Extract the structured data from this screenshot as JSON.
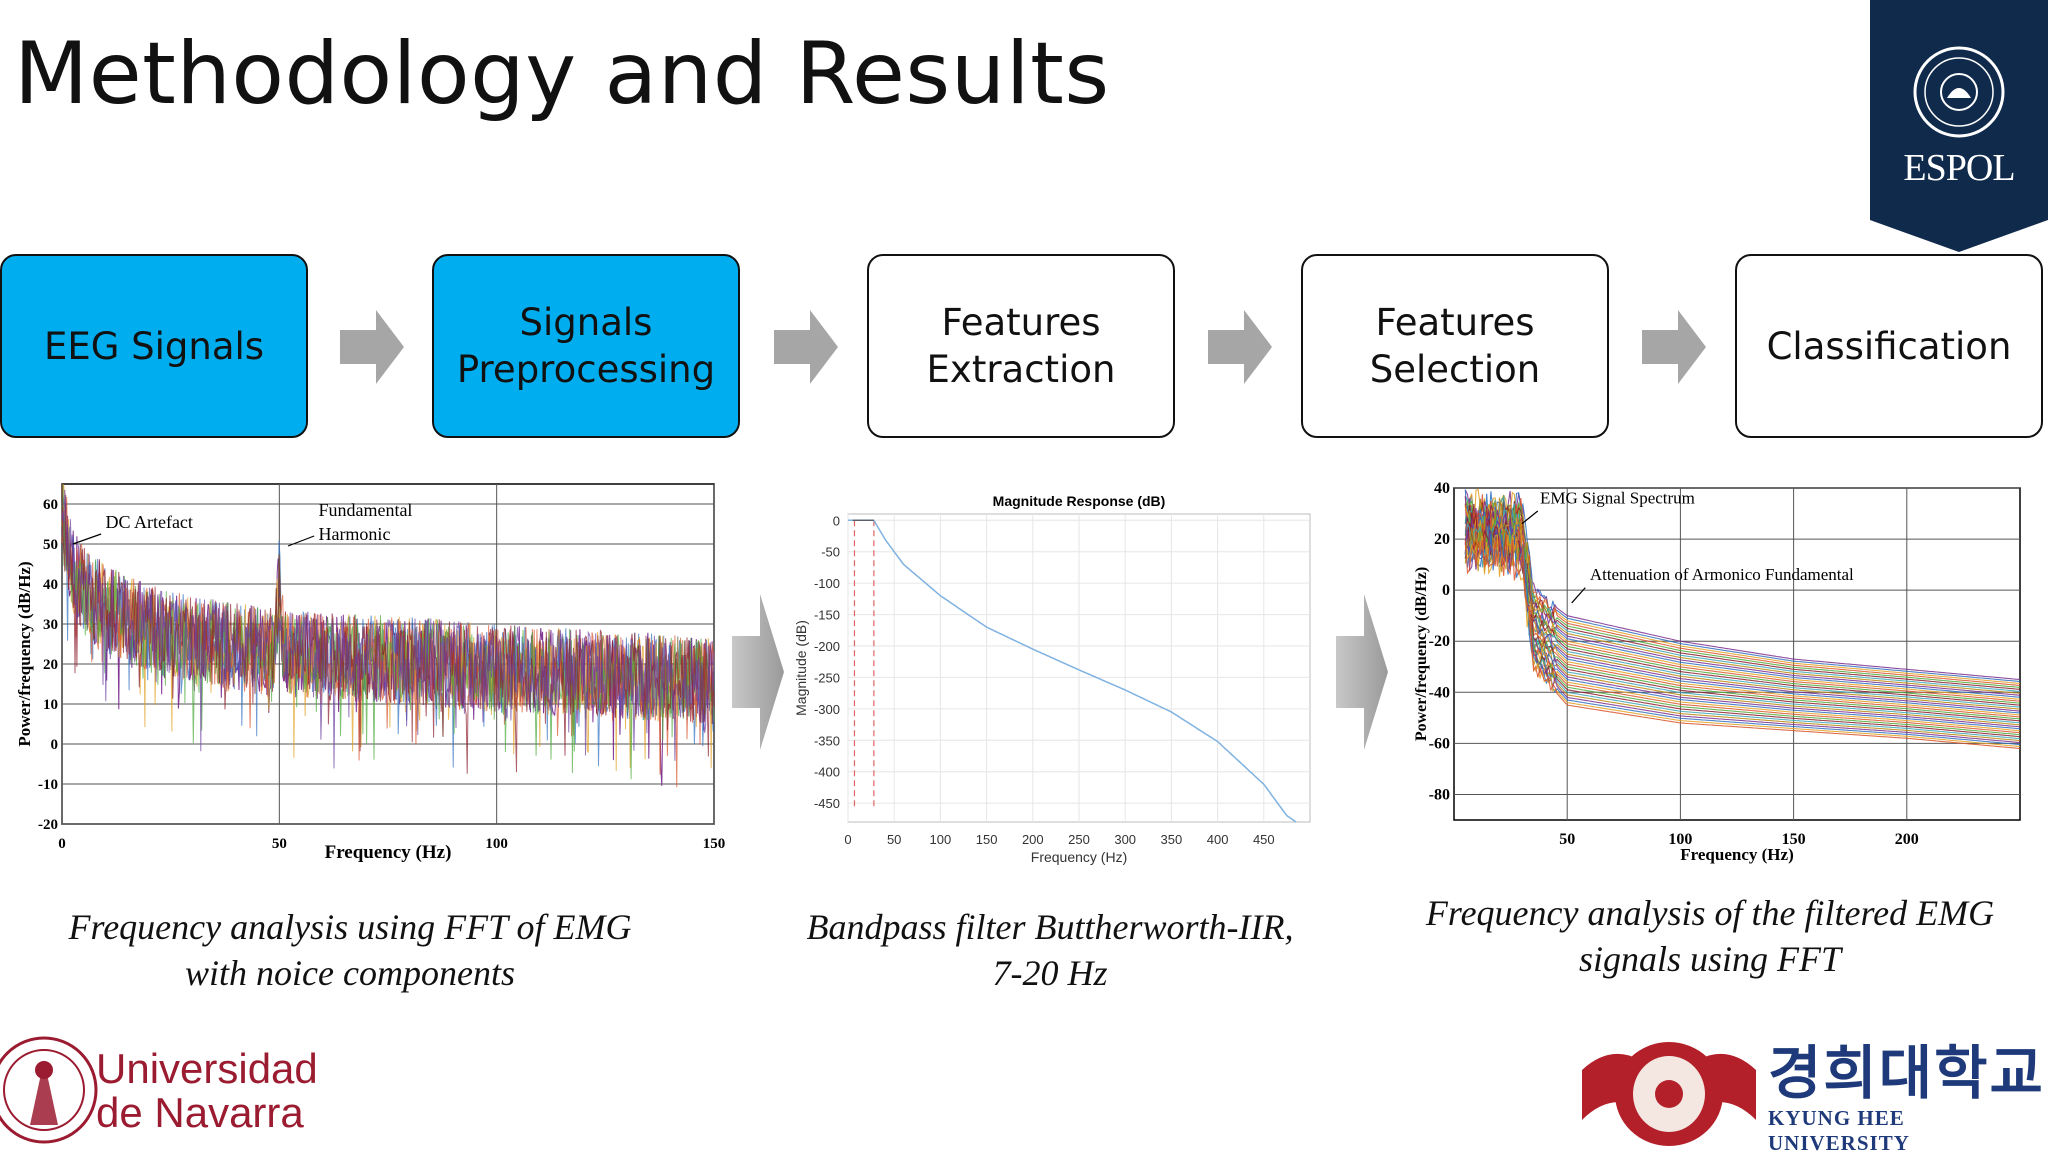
{
  "slide": {
    "title": "Methodology and Results"
  },
  "pipeline": [
    {
      "lines": [
        "EEG Signals"
      ],
      "active": true
    },
    {
      "lines": [
        "Signals",
        "Preprocessing"
      ],
      "active": true
    },
    {
      "lines": [
        "Features",
        "Extraction"
      ],
      "active": false
    },
    {
      "lines": [
        "Features",
        "Selection"
      ],
      "active": false
    },
    {
      "lines": [
        "Classification"
      ],
      "active": false
    }
  ],
  "colors": {
    "active_step": "#00aeef",
    "arrow": "#a6a6a6",
    "espol_navy": "#102a4c",
    "navarra_red": "#9b1b30",
    "kyunghee_blue": "#1f3a7a"
  },
  "captions": {
    "fft_noise": [
      "Frequency analysis using FFT of EMG",
      "with noice components"
    ],
    "filter": [
      "Bandpass filter Buttherworth-IIR,",
      "7-20 Hz"
    ],
    "fft_filtered": [
      "Frequency analysis of the filtered EMG",
      "signals using FFT"
    ]
  },
  "logos": {
    "espol": "ESPOL",
    "navarra": [
      "Universidad",
      "de Navarra"
    ],
    "kyunghee_korean": "경희대학교",
    "kyunghee_english": "KYUNG HEE UNIVERSITY"
  },
  "chart_data": [
    {
      "type": "line",
      "title": "",
      "xlabel": "Frequency (Hz)",
      "ylabel": "Power/frequency (dB/Hz)",
      "xlim": [
        0,
        150
      ],
      "ylim": [
        -20,
        65
      ],
      "xticks": [
        0,
        50,
        100,
        150
      ],
      "yticks": [
        -20,
        -10,
        0,
        10,
        20,
        30,
        40,
        50,
        60
      ],
      "grid": true,
      "annotations": [
        {
          "text": "DC Artefact",
          "x": 1,
          "y": 50
        },
        {
          "text": "Fundamental Harmonic",
          "x": 50,
          "y": 47
        }
      ],
      "profile": {
        "x": [
          0,
          2,
          5,
          10,
          20,
          30,
          49,
          50,
          51,
          60,
          80,
          100,
          150
        ],
        "y": [
          62,
          46,
          40,
          35,
          30,
          27,
          24,
          43,
          24,
          23,
          22,
          20,
          17
        ]
      }
    },
    {
      "type": "line",
      "title": "Magnitude Response (dB)",
      "xlabel": "Frequency (Hz)",
      "ylabel": "Magnitude (dB)",
      "xlim": [
        0,
        500
      ],
      "ylim": [
        -480,
        10
      ],
      "xticks": [
        0,
        50,
        100,
        150,
        200,
        250,
        300,
        350,
        400,
        450
      ],
      "yticks": [
        0,
        -50,
        -100,
        -150,
        -200,
        -250,
        -300,
        -350,
        -400,
        -450
      ],
      "grid": true,
      "passband": [
        7,
        20
      ],
      "response": {
        "x": [
          0,
          7,
          28,
          30,
          40,
          60,
          100,
          150,
          200,
          250,
          300,
          350,
          400,
          450,
          475,
          485
        ],
        "y": [
          0,
          0,
          0,
          -5,
          -30,
          -70,
          -120,
          -170,
          -205,
          -238,
          -270,
          -305,
          -352,
          -420,
          -470,
          -480
        ]
      }
    },
    {
      "type": "line",
      "title": "",
      "xlabel": "Frequency (Hz)",
      "ylabel": "Power/frequency (dB/Hz)",
      "xlim": [
        0,
        250
      ],
      "ylim": [
        -90,
        40
      ],
      "xticks": [
        50,
        100,
        150,
        200
      ],
      "yticks": [
        40,
        20,
        0,
        -20,
        -40,
        -60,
        -80
      ],
      "grid": true,
      "annotations": [
        {
          "text": "EMG Signal Spectrum",
          "x": 30,
          "y": 25
        },
        {
          "text": "Attenuation of Armonico Fundamental",
          "x": 52,
          "y": 0
        }
      ],
      "envelope": {
        "x": [
          5,
          30,
          35,
          50,
          100,
          150,
          200,
          250
        ],
        "y_top": [
          32,
          30,
          0,
          -10,
          -20,
          -27,
          -31,
          -35
        ],
        "y_bottom": [
          15,
          12,
          -30,
          -45,
          -52,
          -55,
          -58,
          -62
        ]
      }
    }
  ]
}
